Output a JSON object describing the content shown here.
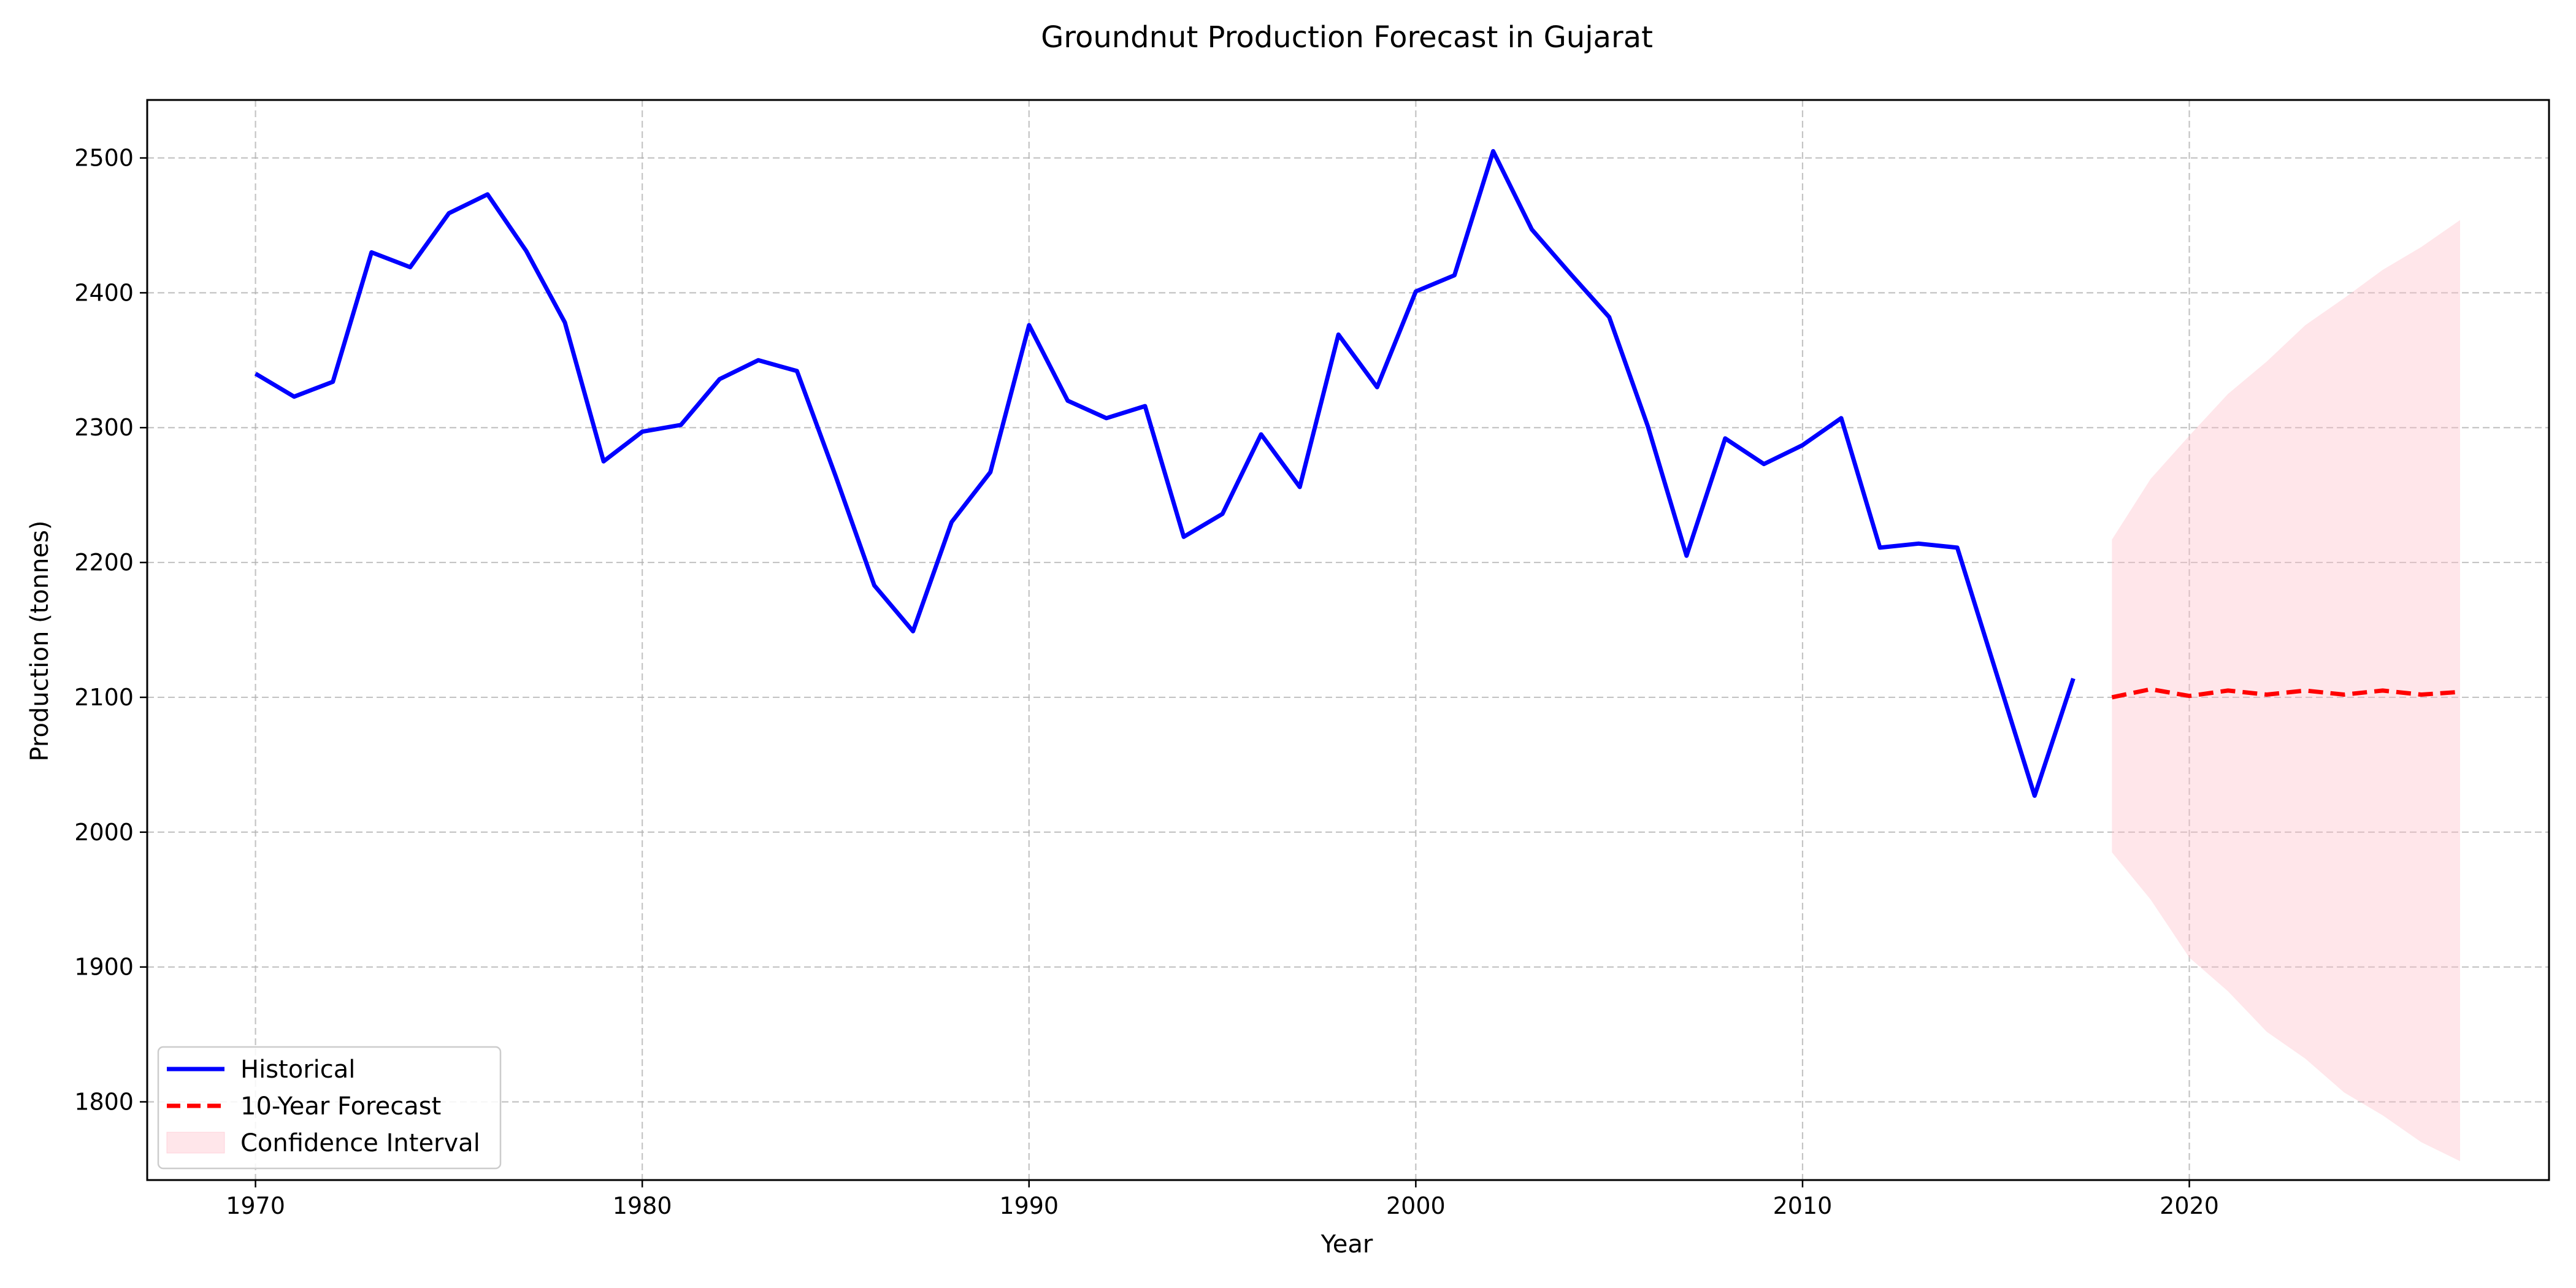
{
  "chart_data": {
    "type": "line",
    "title": "Groundnut Production Forecast in Gujarat",
    "xlabel": "Year",
    "ylabel": "Production (tonnes)",
    "xlim": [
      1967.2,
      2029.3
    ],
    "ylim": [
      1742,
      2543
    ],
    "xticks": [
      1970,
      1980,
      1990,
      2000,
      2010,
      2020
    ],
    "yticks": [
      1800,
      1900,
      2000,
      2100,
      2200,
      2300,
      2400,
      2500
    ],
    "grid": true,
    "legend_position": "lower-left",
    "series": [
      {
        "name": "Historical",
        "style": "solid",
        "color": "#0000ff",
        "x": [
          1970,
          1971,
          1972,
          1973,
          1974,
          1975,
          1976,
          1977,
          1978,
          1979,
          1980,
          1981,
          1982,
          1983,
          1984,
          1985,
          1986,
          1987,
          1988,
          1989,
          1990,
          1991,
          1992,
          1993,
          1994,
          1995,
          1996,
          1997,
          1998,
          1999,
          2000,
          2001,
          2002,
          2003,
          2004,
          2005,
          2006,
          2007,
          2008,
          2009,
          2010,
          2011,
          2012,
          2013,
          2014,
          2015,
          2016,
          2017
        ],
        "y": [
          2340,
          2323,
          2334,
          2430,
          2419,
          2459,
          2473,
          2431,
          2378,
          2275,
          2297,
          2302,
          2336,
          2350,
          2342,
          2264,
          2183,
          2149,
          2230,
          2267,
          2376,
          2320,
          2307,
          2316,
          2219,
          2236,
          2295,
          2256,
          2369,
          2330,
          2401,
          2413,
          2505,
          2447,
          2414,
          2382,
          2301,
          2205,
          2292,
          2273,
          2287,
          2307,
          2211,
          2214,
          2211,
          2119,
          2027,
          2114
        ]
      },
      {
        "name": "10-Year Forecast",
        "style": "dashed",
        "color": "#ff0000",
        "x": [
          2018,
          2019,
          2020,
          2021,
          2022,
          2023,
          2024,
          2025,
          2026,
          2027
        ],
        "y": [
          2100,
          2106,
          2101,
          2105,
          2102,
          2105,
          2102,
          2105,
          2102,
          2104
        ]
      }
    ],
    "confidence_interval": {
      "name": "Confidence Interval",
      "color": "#ffc0cb",
      "x": [
        2018,
        2019,
        2020,
        2021,
        2022,
        2023,
        2024,
        2025,
        2026,
        2027
      ],
      "lower": [
        1985,
        1950,
        1907,
        1882,
        1852,
        1832,
        1807,
        1790,
        1770,
        1756
      ],
      "upper": [
        2217,
        2262,
        2294,
        2325,
        2349,
        2376,
        2396,
        2417,
        2434,
        2454
      ]
    }
  }
}
